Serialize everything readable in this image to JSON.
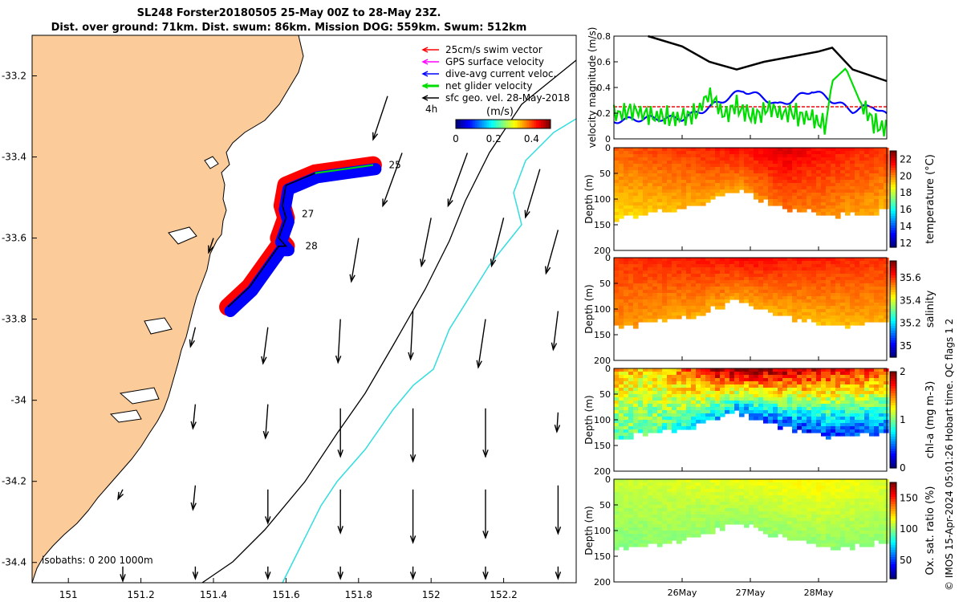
{
  "title": {
    "line1": "SL248 Forster20180505 25-May 00Z to 28-May 23Z.",
    "line2": "Dist. over ground: 71km. Dist. swum: 86km. Mission DOG: 559km. Swum: 512km"
  },
  "footer": "© IMOS 15-Apr-2024 05:01:26 Hobart time. QC flags 1  2",
  "colors": {
    "land": "#fbcb9a",
    "isobath_200": "#000000",
    "isobath_1000": "#33dddd"
  },
  "chart_data": [
    {
      "id": "map",
      "type": "scatter",
      "title": "Glider track map",
      "xlabel": "",
      "ylabel": "",
      "xlim": [
        150.9,
        152.4
      ],
      "ylim": [
        -34.45,
        -33.1
      ],
      "x_ticks": [
        "151",
        "151.2",
        "151.4",
        "151.6",
        "151.8",
        "152",
        "152.2"
      ],
      "y_ticks": [
        "-33.2",
        "-33.4",
        "-33.6",
        "-33.8",
        "-34",
        "-34.2",
        "-34.4"
      ],
      "legend": [
        {
          "label": "25cm/s swim vector",
          "color": "#ff0000"
        },
        {
          "label": "GPS surface velocity",
          "color": "#ff00ff"
        },
        {
          "label": "dive-avg current veloc.",
          "color": "#0000ff"
        },
        {
          "label": "net glider velocity",
          "color": "#00dd00"
        },
        {
          "label": "sfc geo. vel. 28-May-2018",
          "color": "#000000"
        }
      ],
      "extra_label": "4h",
      "colorbar": {
        "label": "(m/s)",
        "ticks": [
          "0",
          "0.2",
          "0.4"
        ],
        "range": [
          0,
          0.5
        ]
      },
      "isobaths_label": "isobaths: 0   200  1000m",
      "day_labels": [
        {
          "text": "25",
          "lon": 151.87,
          "lat": -33.42
        },
        {
          "text": "27",
          "lon": 151.63,
          "lat": -33.54
        },
        {
          "text": "28",
          "lon": 151.64,
          "lat": -33.62
        }
      ],
      "track": {
        "lon": [
          151.84,
          151.76,
          151.68,
          151.6,
          151.59,
          151.6,
          151.58,
          151.6,
          151.58,
          151.5,
          151.44
        ],
        "lat": [
          -33.42,
          -33.43,
          -33.44,
          -33.47,
          -33.52,
          -33.55,
          -33.6,
          -33.62,
          -33.62,
          -33.72,
          -33.77
        ]
      },
      "current_arrows": {
        "lon": [
          151.88,
          151.92,
          152.1,
          152.3,
          151.4,
          151.6,
          151.8,
          152.0,
          152.2,
          152.35,
          151.35,
          151.55,
          151.75,
          151.95,
          152.15,
          152.35,
          151.35,
          151.55,
          151.75,
          151.95,
          152.15,
          152.35,
          151.15,
          151.35,
          151.55,
          151.75,
          151.95,
          152.15,
          152.35,
          151.15,
          151.35,
          151.55,
          151.75,
          151.95,
          152.15,
          152.35
        ],
        "lat": [
          -33.25,
          -33.39,
          -33.39,
          -33.43,
          -33.6,
          -33.57,
          -33.6,
          -33.55,
          -33.55,
          -33.58,
          -33.82,
          -33.82,
          -33.8,
          -33.78,
          -33.8,
          -33.78,
          -34.01,
          -34.01,
          -34.02,
          -34.02,
          -34.02,
          -34.03,
          -34.22,
          -34.21,
          -34.22,
          -34.22,
          -34.22,
          -34.22,
          -34.21,
          -34.41,
          -34.41,
          -34.41,
          -34.41,
          -34.41,
          -34.41,
          -34.41
        ],
        "u": [
          -0.06,
          -0.08,
          -0.08,
          -0.06,
          -0.02,
          -0.02,
          -0.03,
          -0.04,
          -0.05,
          -0.05,
          -0.02,
          -0.02,
          -0.01,
          -0.01,
          -0.03,
          -0.02,
          -0.01,
          -0.01,
          0.0,
          0.0,
          0.0,
          -0.005,
          -0.02,
          -0.01,
          0.0,
          0.0,
          0.0,
          0.0,
          0.0,
          0.0,
          0.0,
          0.0,
          0.0,
          0.0,
          0.0,
          0.0
        ],
        "v": [
          -0.18,
          -0.22,
          -0.22,
          -0.2,
          -0.06,
          -0.14,
          -0.18,
          -0.2,
          -0.2,
          -0.18,
          -0.08,
          -0.15,
          -0.18,
          -0.2,
          -0.2,
          -0.16,
          -0.1,
          -0.14,
          -0.2,
          -0.22,
          -0.2,
          -0.08,
          -0.04,
          -0.1,
          -0.14,
          -0.18,
          -0.22,
          -0.2,
          -0.2,
          -0.06,
          -0.05,
          -0.05,
          -0.05,
          -0.05,
          -0.05,
          -0.05
        ]
      }
    },
    {
      "id": "velocity",
      "type": "line",
      "ylabel": "velocity magnitude (m/s)",
      "ylim": [
        0,
        0.8
      ],
      "y_ticks": [
        "0",
        "0.2",
        "0.4",
        "0.6",
        "0.8"
      ],
      "x_day_range": [
        25,
        29
      ],
      "series": [
        {
          "name": "sfc geo. vel.",
          "color": "#000000",
          "t": [
            25.5,
            26.0,
            26.4,
            26.8,
            27.2,
            27.6,
            28.0,
            28.2,
            28.5,
            29.0
          ],
          "values": [
            0.8,
            0.72,
            0.6,
            0.54,
            0.6,
            0.64,
            0.68,
            0.71,
            0.54,
            0.45
          ]
        },
        {
          "name": "dive-avg current veloc.",
          "color": "#0000ff",
          "t": [
            25.0,
            25.5,
            26.0,
            26.3,
            26.6,
            26.9,
            27.2,
            27.4,
            27.6,
            27.9,
            28.2,
            28.5,
            28.8,
            29.0
          ],
          "values": [
            0.14,
            0.16,
            0.16,
            0.22,
            0.3,
            0.38,
            0.32,
            0.26,
            0.3,
            0.38,
            0.3,
            0.22,
            0.26,
            0.18
          ]
        },
        {
          "name": "25cm/s swim vector",
          "color": "#ff0000",
          "t": [
            25.0,
            29.0
          ],
          "values": [
            0.25,
            0.25
          ]
        },
        {
          "name": "net glider velocity",
          "color": "#00dd00",
          "t": [
            25.0,
            25.3,
            25.6,
            25.9,
            26.2,
            26.4,
            26.6,
            26.8,
            27.0,
            27.3,
            27.6,
            27.9,
            28.1,
            28.2,
            28.4,
            28.6,
            28.8,
            29.0
          ],
          "values": [
            0.2,
            0.22,
            0.18,
            0.16,
            0.2,
            0.35,
            0.2,
            0.25,
            0.18,
            0.22,
            0.2,
            0.16,
            0.1,
            0.45,
            0.55,
            0.3,
            0.12,
            0.1
          ]
        }
      ]
    },
    {
      "id": "temperature",
      "type": "heatmap",
      "cbar_label": "temperature (°C)",
      "cbar_ticks": [
        "12",
        "14",
        "16",
        "18",
        "20",
        "22"
      ],
      "crange": [
        11.5,
        23
      ],
      "ylabel": "Depth (m)",
      "ylim": [
        0,
        200
      ],
      "y_ticks": [
        "0",
        "50",
        "100",
        "150",
        "200"
      ],
      "bottom_depth": {
        "t": [
          25.0,
          25.5,
          25.8,
          26.2,
          26.5,
          26.8,
          27.1,
          27.4,
          27.8,
          28.2,
          28.6,
          29.0
        ],
        "depth": [
          135,
          125,
          120,
          110,
          95,
          80,
          95,
          110,
          120,
          130,
          128,
          120
        ]
      },
      "profile": {
        "t": [
          25.0,
          26.0,
          27.0,
          27.5,
          28.0,
          29.0
        ],
        "surface": [
          20.5,
          21.0,
          21.5,
          22.0,
          21.5,
          21.0
        ],
        "deep": [
          19.0,
          19.5,
          19.8,
          20.3,
          20.0,
          19.5
        ]
      }
    },
    {
      "id": "salinity",
      "type": "heatmap",
      "cbar_label": "salinity",
      "cbar_ticks": [
        "35",
        "35.2",
        "35.4",
        "35.6"
      ],
      "crange": [
        34.9,
        35.75
      ],
      "ylabel": "Depth (m)",
      "ylim": [
        0,
        200
      ],
      "y_ticks": [
        "0",
        "50",
        "100",
        "150",
        "200"
      ],
      "bottom_depth": {
        "t": [
          25.0,
          25.5,
          25.8,
          26.2,
          26.5,
          26.8,
          27.1,
          27.4,
          27.8,
          28.2,
          28.6,
          29.0
        ],
        "depth": [
          135,
          125,
          120,
          110,
          95,
          80,
          95,
          110,
          120,
          130,
          128,
          120
        ]
      },
      "profile": {
        "t": [
          25.0,
          26.0,
          27.0,
          28.0,
          29.0
        ],
        "surface": [
          35.6,
          35.62,
          35.64,
          35.62,
          35.6
        ],
        "deep": [
          35.52,
          35.5,
          35.5,
          35.48,
          35.5
        ]
      }
    },
    {
      "id": "chla",
      "type": "heatmap",
      "cbar_label": "chl-a (mg m-3)",
      "cbar_ticks": [
        "0",
        "1",
        "2"
      ],
      "crange": [
        0,
        2
      ],
      "ylabel": "Depth (m)",
      "ylim": [
        0,
        200
      ],
      "y_ticks": [
        "0",
        "50",
        "100",
        "150",
        "200"
      ],
      "bottom_depth": {
        "t": [
          25.0,
          25.5,
          25.8,
          26.2,
          26.5,
          26.8,
          27.1,
          27.4,
          27.8,
          28.2,
          28.6,
          29.0
        ],
        "depth": [
          135,
          125,
          120,
          110,
          95,
          80,
          95,
          110,
          120,
          130,
          128,
          120
        ]
      },
      "profile": {
        "t": [
          25.0,
          25.5,
          26.0,
          26.5,
          27.0,
          27.5,
          28.0,
          28.5,
          29.0
        ],
        "surface": [
          1.4,
          1.3,
          1.5,
          1.9,
          1.95,
          1.9,
          1.8,
          1.7,
          1.6
        ],
        "deep": [
          0.9,
          0.9,
          0.8,
          0.6,
          0.4,
          0.3,
          0.3,
          0.35,
          0.4
        ]
      }
    },
    {
      "id": "oxygen",
      "type": "heatmap",
      "cbar_label": "Ox. sat. ratio (%)",
      "cbar_ticks": [
        "50",
        "100",
        "150"
      ],
      "crange": [
        20,
        175
      ],
      "ylabel": "Depth (m)",
      "ylim": [
        0,
        200
      ],
      "y_ticks": [
        "0",
        "50",
        "100",
        "150",
        "200"
      ],
      "bottom_depth": {
        "t": [
          25.0,
          25.5,
          25.8,
          26.2,
          26.5,
          26.8,
          27.1,
          27.4,
          27.8,
          28.2,
          28.6,
          29.0
        ],
        "depth": [
          135,
          125,
          120,
          110,
          95,
          80,
          95,
          110,
          120,
          130,
          128,
          120
        ]
      },
      "profile": {
        "t": [
          25.0,
          26.0,
          27.0,
          28.0,
          29.0
        ],
        "surface": [
          108,
          112,
          115,
          118,
          112
        ],
        "deep": [
          98,
          100,
          100,
          100,
          100
        ]
      }
    }
  ],
  "x_date_ticks": [
    "26May",
    "27May",
    "28May"
  ],
  "x_date_days": [
    26,
    27,
    28
  ]
}
